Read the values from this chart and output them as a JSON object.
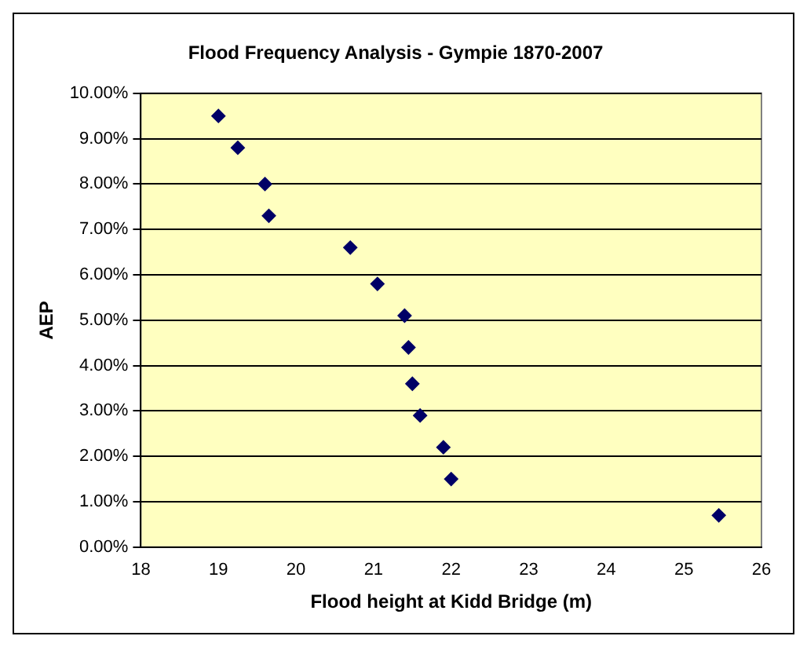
{
  "chart_data": {
    "type": "scatter",
    "title": "Flood Frequency Analysis - Gympie 1870-2007",
    "xlabel": "Flood height at Kidd Bridge (m)",
    "ylabel": "AEP",
    "x": [
      19.0,
      19.25,
      19.6,
      19.65,
      20.7,
      21.05,
      21.4,
      21.45,
      21.5,
      21.6,
      21.9,
      22.0,
      25.45
    ],
    "series": [
      {
        "color": "#000066",
        "values": [
          9.5,
          8.8,
          8.0,
          7.3,
          6.6,
          5.8,
          5.1,
          4.4,
          3.6,
          2.9,
          2.2,
          1.5,
          0.7
        ]
      }
    ],
    "xlim": [
      18,
      26
    ],
    "xticks": [
      18,
      19,
      20,
      21,
      22,
      23,
      24,
      25,
      26
    ],
    "ylim": [
      0,
      10
    ],
    "yticks": [
      {
        "value": 0,
        "label": "0.00%"
      },
      {
        "value": 1,
        "label": "1.00%"
      },
      {
        "value": 2,
        "label": "2.00%"
      },
      {
        "value": 3,
        "label": "3.00%"
      },
      {
        "value": 4,
        "label": "4.00%"
      },
      {
        "value": 5,
        "label": "5.00%"
      },
      {
        "value": 6,
        "label": "6.00%"
      },
      {
        "value": 7,
        "label": "7.00%"
      },
      {
        "value": 8,
        "label": "8.00%"
      },
      {
        "value": 9,
        "label": "9.00%"
      },
      {
        "value": 10,
        "label": "10.00%"
      }
    ],
    "grid": "y",
    "marker": "diamond",
    "legend": false
  }
}
